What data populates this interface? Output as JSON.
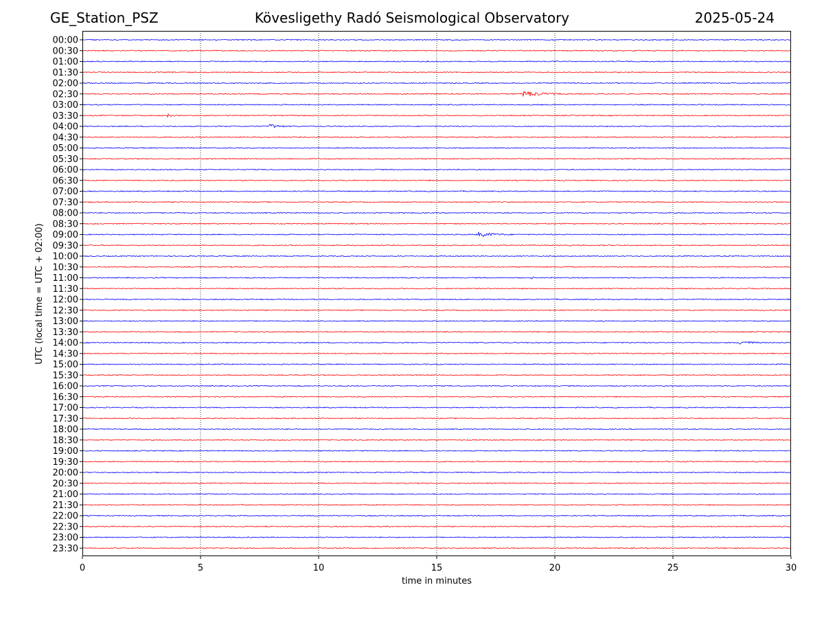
{
  "header": {
    "station": "GE_Station_PSZ",
    "title": "Kövesligethy Radó Seismological Observatory",
    "date": "2025-05-24"
  },
  "chart_data": {
    "type": "line",
    "title": "Kövesligethy Radó Seismological Observatory",
    "xlabel": "time in minutes",
    "ylabel": "UTC (local time = UTC + 02:00)",
    "xlim": [
      0,
      30
    ],
    "xticks": [
      0,
      5,
      10,
      15,
      20,
      25,
      30
    ],
    "grid": "vertical dotted at x ticks",
    "trace_colors": [
      "#0000ff",
      "#ff0000"
    ],
    "rows": [
      "00:00",
      "00:30",
      "01:00",
      "01:30",
      "02:00",
      "02:30",
      "03:00",
      "03:30",
      "04:00",
      "04:30",
      "05:00",
      "05:30",
      "06:00",
      "06:30",
      "07:00",
      "07:30",
      "08:00",
      "08:30",
      "09:00",
      "09:30",
      "10:00",
      "10:30",
      "11:00",
      "11:30",
      "12:00",
      "12:30",
      "13:00",
      "13:30",
      "14:00",
      "14:30",
      "15:00",
      "15:30",
      "16:00",
      "16:30",
      "17:00",
      "17:30",
      "18:00",
      "18:30",
      "19:00",
      "19:30",
      "20:00",
      "20:30",
      "21:00",
      "21:30",
      "22:00",
      "22:30",
      "23:00",
      "23:30"
    ],
    "events": [
      {
        "row": "02:30",
        "start": 18.6,
        "duration": 3.5,
        "amplitude": 5
      },
      {
        "row": "03:30",
        "start": 3.6,
        "duration": 1.0,
        "amplitude": 2.5
      },
      {
        "row": "04:00",
        "start": 7.9,
        "duration": 1.6,
        "amplitude": 4
      },
      {
        "row": "09:00",
        "start": 16.7,
        "duration": 3.3,
        "amplitude": 4
      },
      {
        "row": "11:00",
        "start": 19.0,
        "duration": 0.8,
        "amplitude": 1.8
      },
      {
        "row": "14:00",
        "start": 27.8,
        "duration": 2.2,
        "amplitude": 4
      }
    ]
  }
}
